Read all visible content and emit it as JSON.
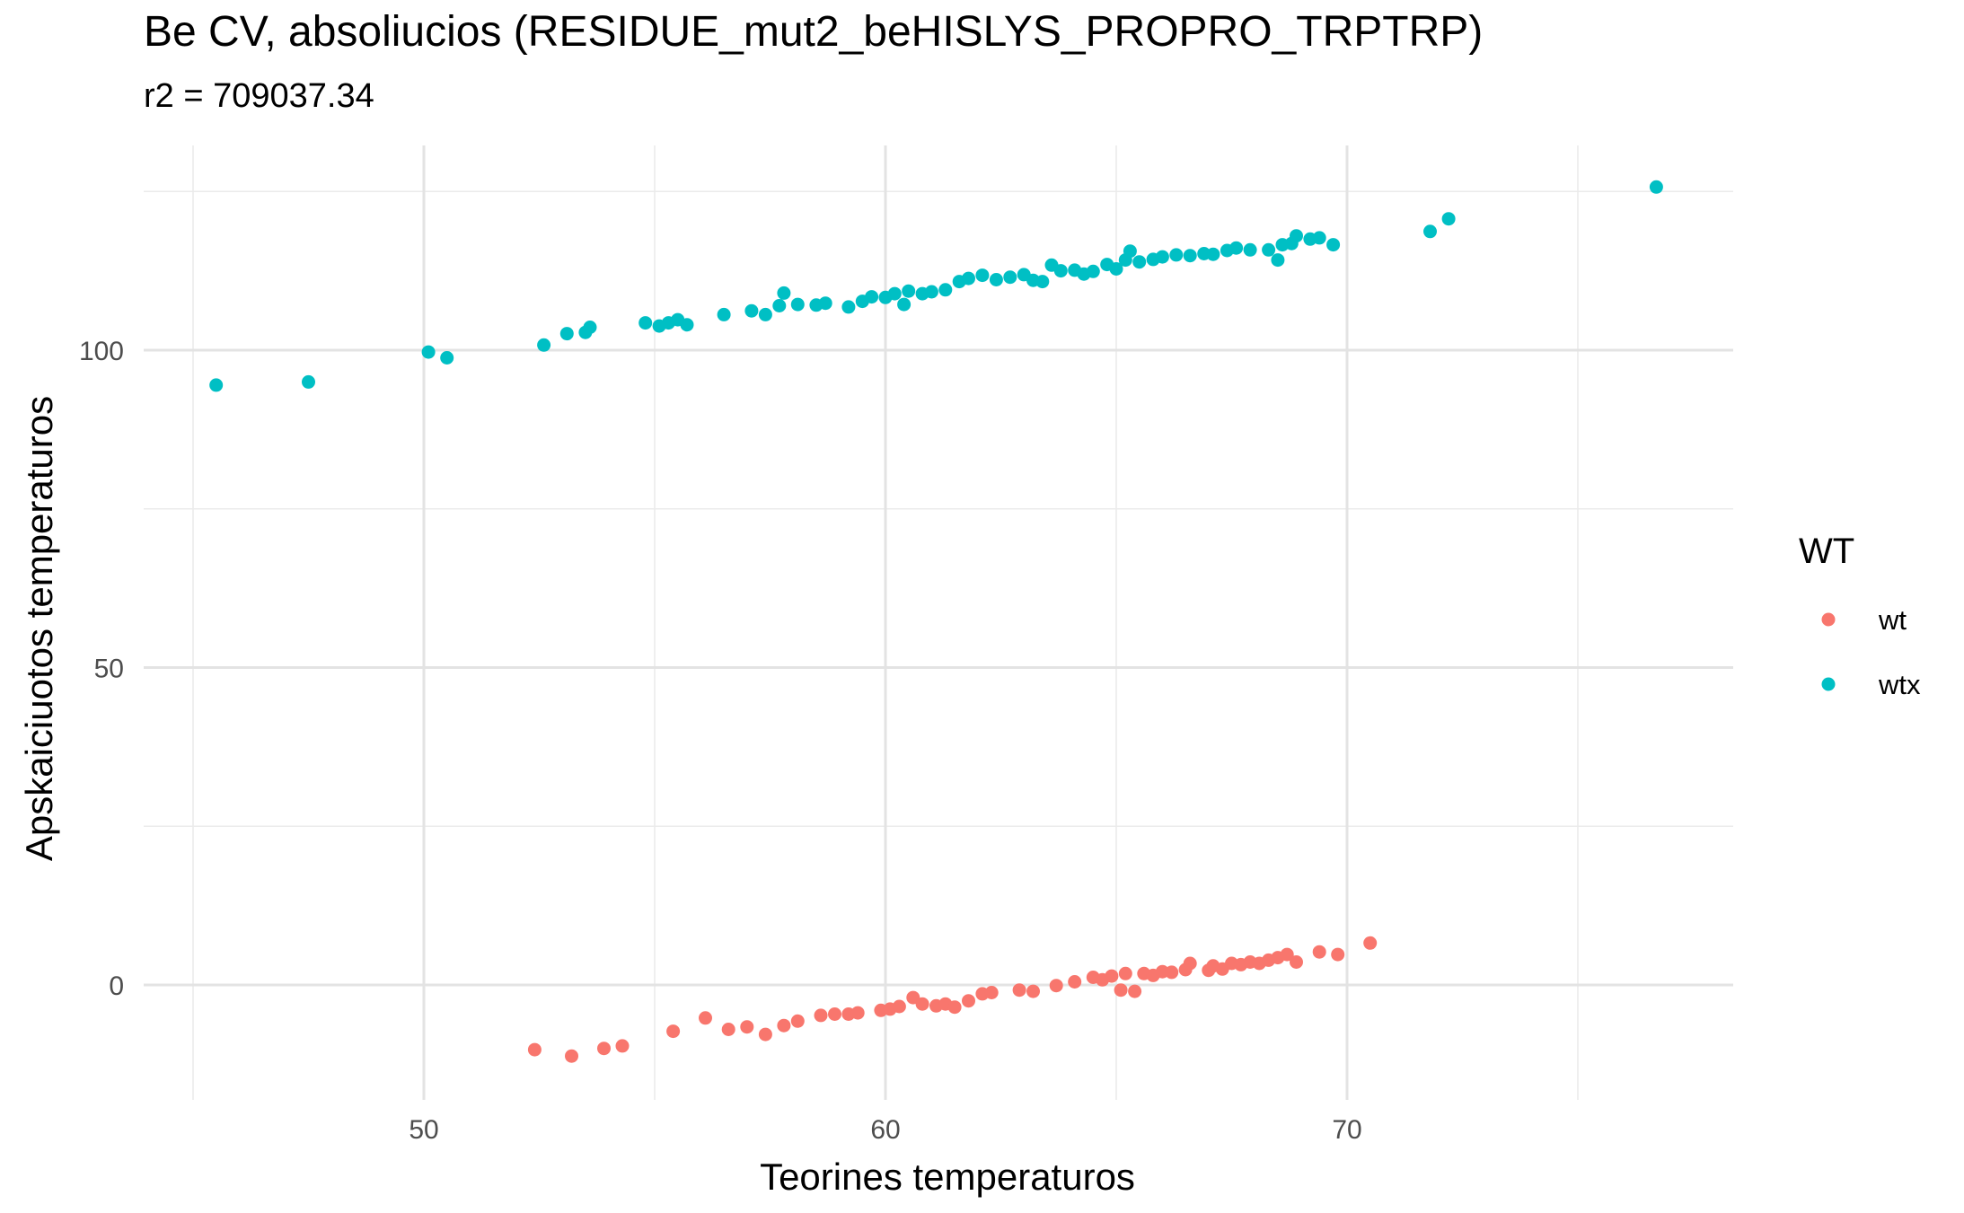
{
  "chart_data": {
    "type": "scatter",
    "title": "Be CV, absoliucios (RESIDUE_mut2_beHISLYS_PROPRO_TRPTRP)",
    "subtitle": "r2 = 709037.34",
    "xlabel": "Teorines temperaturos",
    "ylabel": "Apskaiciuotos temperaturos",
    "xlim": [
      45,
      78
    ],
    "ylim": [
      -18,
      126
    ],
    "x_ticks": [
      50,
      60,
      70
    ],
    "y_ticks": [
      0,
      50,
      100
    ],
    "grid": true,
    "legend": {
      "title": "WT",
      "placement": "right"
    },
    "series": [
      {
        "name": "wt",
        "color": "#F8766D",
        "points": [
          [
            52.4,
            -10.2
          ],
          [
            53.2,
            -11.2
          ],
          [
            53.9,
            -10.0
          ],
          [
            54.3,
            -9.6
          ],
          [
            55.4,
            -7.3
          ],
          [
            56.1,
            -5.2
          ],
          [
            56.6,
            -7.0
          ],
          [
            57.0,
            -6.6
          ],
          [
            57.4,
            -7.8
          ],
          [
            57.8,
            -6.4
          ],
          [
            58.1,
            -5.7
          ],
          [
            58.6,
            -4.8
          ],
          [
            58.9,
            -4.6
          ],
          [
            59.2,
            -4.6
          ],
          [
            59.4,
            -4.4
          ],
          [
            59.9,
            -4.0
          ],
          [
            60.1,
            -3.8
          ],
          [
            60.3,
            -3.4
          ],
          [
            60.6,
            -2.0
          ],
          [
            60.8,
            -3.0
          ],
          [
            61.1,
            -3.3
          ],
          [
            61.3,
            -3.0
          ],
          [
            61.5,
            -3.5
          ],
          [
            61.8,
            -2.5
          ],
          [
            62.1,
            -1.4
          ],
          [
            62.3,
            -1.2
          ],
          [
            62.9,
            -0.8
          ],
          [
            63.2,
            -1.0
          ],
          [
            63.7,
            -0.1
          ],
          [
            64.1,
            0.5
          ],
          [
            64.5,
            1.2
          ],
          [
            64.7,
            0.8
          ],
          [
            64.9,
            1.4
          ],
          [
            65.1,
            -0.8
          ],
          [
            65.2,
            1.8
          ],
          [
            65.4,
            -1.0
          ],
          [
            65.6,
            1.8
          ],
          [
            65.8,
            1.5
          ],
          [
            66.0,
            2.1
          ],
          [
            66.2,
            2.0
          ],
          [
            66.5,
            2.4
          ],
          [
            66.6,
            3.4
          ],
          [
            67.0,
            2.3
          ],
          [
            67.1,
            3.0
          ],
          [
            67.3,
            2.5
          ],
          [
            67.5,
            3.4
          ],
          [
            67.7,
            3.2
          ],
          [
            67.9,
            3.6
          ],
          [
            68.1,
            3.4
          ],
          [
            68.3,
            3.9
          ],
          [
            68.5,
            4.3
          ],
          [
            68.7,
            4.8
          ],
          [
            68.9,
            3.6
          ],
          [
            69.4,
            5.2
          ],
          [
            69.8,
            4.8
          ],
          [
            70.5,
            6.6
          ]
        ]
      },
      {
        "name": "wtx",
        "color": "#00BFC4",
        "points": [
          [
            45.5,
            94.5
          ],
          [
            47.5,
            95.0
          ],
          [
            50.1,
            99.7
          ],
          [
            50.5,
            98.8
          ],
          [
            52.6,
            100.8
          ],
          [
            53.1,
            102.6
          ],
          [
            53.5,
            102.8
          ],
          [
            53.6,
            103.6
          ],
          [
            54.8,
            104.3
          ],
          [
            55.1,
            103.8
          ],
          [
            55.3,
            104.3
          ],
          [
            55.5,
            104.8
          ],
          [
            55.7,
            104.0
          ],
          [
            56.5,
            105.6
          ],
          [
            57.1,
            106.2
          ],
          [
            57.4,
            105.6
          ],
          [
            57.7,
            107.0
          ],
          [
            57.8,
            109.0
          ],
          [
            58.1,
            107.2
          ],
          [
            58.5,
            107.1
          ],
          [
            58.7,
            107.4
          ],
          [
            59.2,
            106.8
          ],
          [
            59.5,
            107.7
          ],
          [
            59.7,
            108.4
          ],
          [
            60.0,
            108.3
          ],
          [
            60.2,
            108.9
          ],
          [
            60.4,
            107.2
          ],
          [
            60.5,
            109.3
          ],
          [
            60.8,
            108.9
          ],
          [
            61.0,
            109.2
          ],
          [
            61.3,
            109.5
          ],
          [
            61.6,
            110.8
          ],
          [
            61.8,
            111.3
          ],
          [
            62.1,
            111.8
          ],
          [
            62.4,
            111.1
          ],
          [
            62.7,
            111.5
          ],
          [
            63.0,
            111.9
          ],
          [
            63.2,
            111.0
          ],
          [
            63.4,
            110.8
          ],
          [
            63.6,
            113.4
          ],
          [
            63.8,
            112.5
          ],
          [
            64.1,
            112.6
          ],
          [
            64.3,
            112.0
          ],
          [
            64.5,
            112.4
          ],
          [
            64.8,
            113.5
          ],
          [
            65.0,
            112.8
          ],
          [
            65.2,
            114.2
          ],
          [
            65.3,
            115.6
          ],
          [
            65.5,
            113.9
          ],
          [
            65.8,
            114.3
          ],
          [
            66.0,
            114.7
          ],
          [
            66.3,
            115.0
          ],
          [
            66.6,
            114.9
          ],
          [
            66.9,
            115.2
          ],
          [
            67.1,
            115.1
          ],
          [
            67.4,
            115.7
          ],
          [
            67.6,
            116.1
          ],
          [
            67.9,
            115.8
          ],
          [
            68.3,
            115.8
          ],
          [
            68.5,
            114.2
          ],
          [
            68.6,
            116.6
          ],
          [
            68.8,
            116.8
          ],
          [
            68.9,
            118.0
          ],
          [
            69.2,
            117.5
          ],
          [
            69.4,
            117.7
          ],
          [
            69.7,
            116.6
          ],
          [
            71.8,
            118.7
          ],
          [
            72.2,
            120.7
          ],
          [
            76.7,
            125.7
          ]
        ]
      }
    ]
  }
}
